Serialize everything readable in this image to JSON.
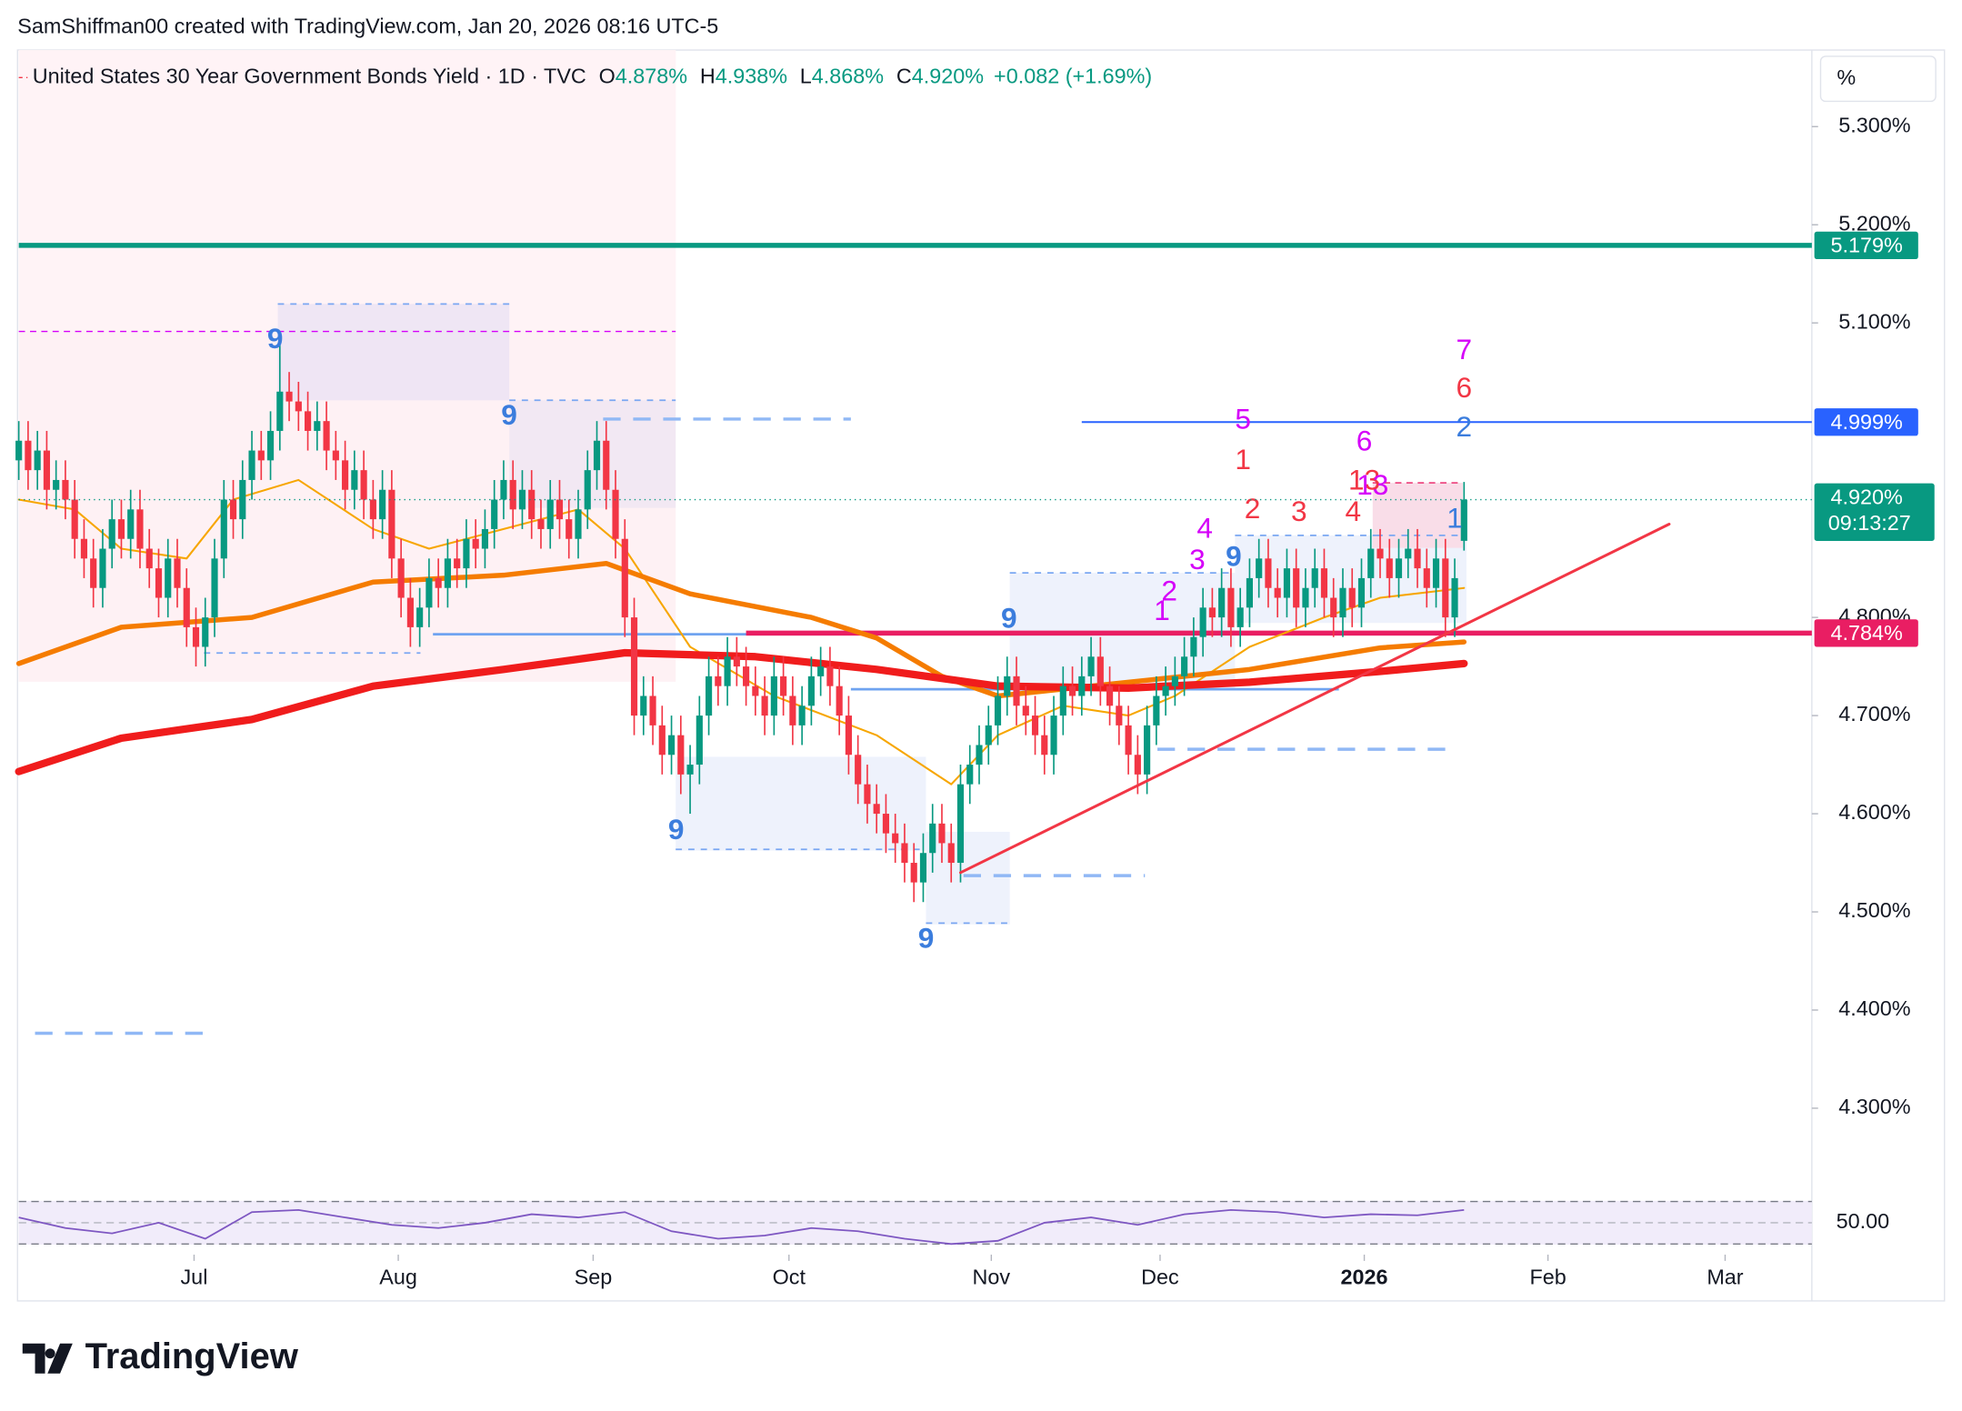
{
  "header": {
    "credit": "SamShiffman00 created with TradingView.com, Jan 20, 2026 08:16 UTC-5",
    "logo": "TradingView",
    "unit": "%"
  },
  "chart_data": {
    "type": "candlestick",
    "title": "United States 30 Year Government Bonds Yield · 1D · TVC",
    "ohlc_names": [
      "O",
      "H",
      "L",
      "C"
    ],
    "ohlc_labels": [
      "4.878%",
      "4.938%",
      "4.868%",
      "4.920%"
    ],
    "change_label": "+0.082 (+1.69%)",
    "last_label": "4.920%",
    "countdown": "09:13:27",
    "xlim": [
      0,
      192.3
    ],
    "ylim": [
      4.212,
      5.378
    ],
    "xticks": [
      {
        "value": 18.8,
        "label": "Jul"
      },
      {
        "value": 40.7,
        "label": "Aug"
      },
      {
        "value": 61.6,
        "label": "Sep"
      },
      {
        "value": 82.6,
        "label": "Oct"
      },
      {
        "value": 104.3,
        "label": "Nov"
      },
      {
        "value": 122.4,
        "label": "Dec"
      },
      {
        "value": 144.3,
        "label": "2026"
      },
      {
        "value": 164,
        "label": "Feb"
      },
      {
        "value": 183,
        "label": "Mar"
      }
    ],
    "yticks": [
      {
        "value": 4.3,
        "label": "4.300%"
      },
      {
        "value": 4.4,
        "label": "4.400%"
      },
      {
        "value": 4.5,
        "label": "4.500%"
      },
      {
        "value": 4.6,
        "label": "4.600%"
      },
      {
        "value": 4.7,
        "label": "4.700%"
      },
      {
        "value": 4.8,
        "label": "4.800%"
      },
      {
        "value": 5.1,
        "label": "5.100%"
      },
      {
        "value": 5.2,
        "label": "5.200%"
      },
      {
        "value": 5.3,
        "label": "5.300%"
      }
    ],
    "grid": false,
    "up_color": "#089981",
    "down_color": "#f23645",
    "open": [
      4.96,
      4.98,
      4.95,
      4.97,
      4.93,
      4.94,
      4.92,
      4.88,
      4.86,
      4.83,
      4.87,
      4.9,
      4.88,
      4.91,
      4.87,
      4.85,
      4.82,
      4.86,
      4.83,
      4.79,
      4.77,
      4.8,
      4.86,
      4.92,
      4.9,
      4.94,
      4.97,
      4.96,
      4.99,
      5.03,
      5.02,
      5.01,
      4.99,
      5.0,
      4.97,
      4.96,
      4.93,
      4.95,
      4.92,
      4.9,
      4.93,
      4.86,
      4.82,
      4.79,
      4.81,
      4.84,
      4.83,
      4.86,
      4.85,
      4.88,
      4.87,
      4.89,
      4.92,
      4.94,
      4.91,
      4.93,
      4.9,
      4.89,
      4.92,
      4.9,
      4.88,
      4.91,
      4.95,
      4.98,
      4.93,
      4.88,
      4.8,
      4.7,
      4.72,
      4.69,
      4.66,
      4.68,
      4.64,
      4.65,
      4.7,
      4.74,
      4.73,
      4.76,
      4.75,
      4.73,
      4.72,
      4.7,
      4.74,
      4.72,
      4.69,
      4.71,
      4.74,
      4.75,
      4.73,
      4.7,
      4.66,
      4.63,
      4.61,
      4.6,
      4.58,
      4.57,
      4.55,
      4.53,
      4.56,
      4.59,
      4.57,
      4.55,
      4.63,
      4.65,
      4.67,
      4.69,
      4.72,
      4.74,
      4.71,
      4.7,
      4.68,
      4.66,
      4.7,
      4.73,
      4.72,
      4.74,
      4.76,
      4.73,
      4.71,
      4.69,
      4.66,
      4.64,
      4.69,
      4.72,
      4.73,
      4.74,
      4.76,
      4.78,
      4.81,
      4.8,
      4.83,
      4.79,
      4.81,
      4.84,
      4.86,
      4.83,
      4.82,
      4.85,
      4.81,
      4.83,
      4.85,
      4.82,
      4.8,
      4.83,
      4.81,
      4.84,
      4.87,
      4.86,
      4.84,
      4.86,
      4.87,
      4.85,
      4.83,
      4.86,
      4.8,
      4.878
    ],
    "high": [
      5.0,
      5.0,
      4.99,
      4.99,
      4.96,
      4.96,
      4.94,
      4.9,
      4.88,
      4.89,
      4.92,
      4.92,
      4.93,
      4.93,
      4.89,
      4.87,
      4.88,
      4.88,
      4.85,
      4.81,
      4.82,
      4.88,
      4.94,
      4.94,
      4.96,
      4.99,
      4.99,
      5.01,
      5.09,
      5.05,
      5.04,
      5.03,
      5.02,
      5.02,
      4.99,
      4.98,
      4.97,
      4.97,
      4.94,
      4.95,
      4.95,
      4.88,
      4.84,
      4.83,
      4.86,
      4.86,
      4.88,
      4.88,
      4.9,
      4.9,
      4.91,
      4.94,
      4.96,
      4.96,
      4.95,
      4.95,
      4.92,
      4.94,
      4.94,
      4.92,
      4.93,
      4.97,
      5.0,
      5.0,
      4.95,
      4.9,
      4.82,
      4.74,
      4.74,
      4.71,
      4.7,
      4.7,
      4.67,
      4.72,
      4.76,
      4.76,
      4.78,
      4.78,
      4.77,
      4.75,
      4.74,
      4.76,
      4.76,
      4.74,
      4.73,
      4.76,
      4.77,
      4.77,
      4.75,
      4.72,
      4.68,
      4.65,
      4.63,
      4.62,
      4.6,
      4.59,
      4.57,
      4.58,
      4.61,
      4.61,
      4.59,
      4.65,
      4.67,
      4.69,
      4.71,
      4.74,
      4.76,
      4.76,
      4.73,
      4.72,
      4.7,
      4.72,
      4.75,
      4.75,
      4.76,
      4.78,
      4.78,
      4.75,
      4.73,
      4.71,
      4.68,
      4.71,
      4.74,
      4.75,
      4.76,
      4.78,
      4.8,
      4.83,
      4.83,
      4.85,
      4.85,
      4.83,
      4.86,
      4.88,
      4.88,
      4.85,
      4.87,
      4.87,
      4.85,
      4.87,
      4.87,
      4.84,
      4.85,
      4.85,
      4.86,
      4.89,
      4.89,
      4.88,
      4.88,
      4.89,
      4.89,
      4.87,
      4.88,
      4.88,
      4.86,
      4.938
    ],
    "low": [
      4.94,
      4.93,
      4.93,
      4.91,
      4.91,
      4.9,
      4.86,
      4.84,
      4.81,
      4.81,
      4.85,
      4.86,
      4.86,
      4.85,
      4.83,
      4.8,
      4.8,
      4.81,
      4.77,
      4.75,
      4.75,
      4.78,
      4.84,
      4.88,
      4.88,
      4.92,
      4.94,
      4.94,
      4.97,
      5.0,
      4.99,
      4.97,
      4.97,
      4.95,
      4.94,
      4.91,
      4.91,
      4.9,
      4.88,
      4.88,
      4.84,
      4.8,
      4.77,
      4.77,
      4.79,
      4.81,
      4.81,
      4.83,
      4.83,
      4.85,
      4.85,
      4.87,
      4.9,
      4.89,
      4.89,
      4.88,
      4.87,
      4.87,
      4.88,
      4.86,
      4.86,
      4.89,
      4.93,
      4.91,
      4.86,
      4.78,
      4.68,
      4.68,
      4.67,
      4.64,
      4.64,
      4.62,
      4.6,
      4.63,
      4.68,
      4.71,
      4.71,
      4.73,
      4.71,
      4.7,
      4.68,
      4.68,
      4.7,
      4.67,
      4.67,
      4.69,
      4.72,
      4.71,
      4.68,
      4.64,
      4.61,
      4.59,
      4.58,
      4.56,
      4.55,
      4.53,
      4.51,
      4.51,
      4.54,
      4.55,
      4.53,
      4.53,
      4.61,
      4.63,
      4.65,
      4.67,
      4.7,
      4.69,
      4.68,
      4.66,
      4.64,
      4.64,
      4.68,
      4.7,
      4.7,
      4.72,
      4.71,
      4.69,
      4.67,
      4.64,
      4.62,
      4.62,
      4.67,
      4.7,
      4.71,
      4.72,
      4.74,
      4.76,
      4.78,
      4.78,
      4.77,
      4.77,
      4.79,
      4.82,
      4.81,
      4.8,
      4.8,
      4.79,
      4.79,
      4.81,
      4.8,
      4.78,
      4.78,
      4.79,
      4.79,
      4.82,
      4.84,
      4.82,
      4.82,
      4.84,
      4.83,
      4.81,
      4.81,
      4.78,
      4.78,
      4.868
    ],
    "close": [
      4.98,
      4.95,
      4.97,
      4.93,
      4.94,
      4.92,
      4.88,
      4.86,
      4.83,
      4.87,
      4.9,
      4.88,
      4.91,
      4.87,
      4.85,
      4.82,
      4.86,
      4.83,
      4.79,
      4.77,
      4.8,
      4.86,
      4.92,
      4.9,
      4.94,
      4.97,
      4.96,
      4.99,
      5.03,
      5.02,
      5.01,
      4.99,
      5.0,
      4.97,
      4.96,
      4.93,
      4.95,
      4.92,
      4.9,
      4.93,
      4.86,
      4.82,
      4.79,
      4.81,
      4.84,
      4.83,
      4.86,
      4.85,
      4.88,
      4.87,
      4.89,
      4.92,
      4.94,
      4.91,
      4.93,
      4.9,
      4.89,
      4.92,
      4.9,
      4.88,
      4.91,
      4.95,
      4.98,
      4.93,
      4.88,
      4.8,
      4.7,
      4.72,
      4.69,
      4.66,
      4.68,
      4.64,
      4.65,
      4.7,
      4.74,
      4.73,
      4.76,
      4.75,
      4.73,
      4.72,
      4.7,
      4.74,
      4.72,
      4.69,
      4.71,
      4.74,
      4.75,
      4.73,
      4.7,
      4.66,
      4.63,
      4.61,
      4.6,
      4.58,
      4.57,
      4.55,
      4.53,
      4.56,
      4.59,
      4.57,
      4.55,
      4.63,
      4.65,
      4.67,
      4.69,
      4.72,
      4.74,
      4.71,
      4.7,
      4.68,
      4.66,
      4.7,
      4.73,
      4.72,
      4.74,
      4.76,
      4.73,
      4.71,
      4.69,
      4.66,
      4.64,
      4.69,
      4.72,
      4.73,
      4.74,
      4.76,
      4.78,
      4.81,
      4.8,
      4.83,
      4.79,
      4.81,
      4.84,
      4.86,
      4.83,
      4.82,
      4.85,
      4.81,
      4.83,
      4.85,
      4.82,
      4.8,
      4.83,
      4.81,
      4.84,
      4.87,
      4.86,
      4.84,
      4.86,
      4.87,
      4.85,
      4.83,
      4.86,
      4.8,
      4.84,
      4.92
    ],
    "lines": [
      {
        "color": "#f7a600",
        "width": 1.5,
        "x": [
          0,
          6,
          11,
          18,
          23,
          30,
          38,
          44,
          52,
          60,
          65,
          72,
          81,
          92,
          100,
          105,
          112,
          119,
          124,
          132,
          140,
          146,
          155
        ],
        "values": [
          4.92,
          4.91,
          4.87,
          4.86,
          4.92,
          4.94,
          4.89,
          4.87,
          4.89,
          4.91,
          4.87,
          4.77,
          4.72,
          4.68,
          4.63,
          4.68,
          4.71,
          4.7,
          4.72,
          4.77,
          4.8,
          4.82,
          4.83
        ]
      },
      {
        "color": "#f57c00",
        "width": 4,
        "x": [
          0,
          11,
          25,
          38,
          52,
          63,
          72,
          85,
          92,
          99,
          105,
          119,
          132,
          146,
          155
        ],
        "values": [
          4.753,
          4.79,
          4.8,
          4.836,
          4.843,
          4.855,
          4.824,
          4.8,
          4.779,
          4.74,
          4.72,
          4.734,
          4.747,
          4.769,
          4.775
        ]
      },
      {
        "color": "#f01c1c",
        "width": 6,
        "x": [
          0,
          11,
          25,
          38,
          52,
          65,
          79,
          92,
          105,
          119,
          132,
          146,
          155
        ],
        "values": [
          4.643,
          4.677,
          4.696,
          4.73,
          4.747,
          4.764,
          4.76,
          4.747,
          4.73,
          4.728,
          4.734,
          4.745,
          4.753
        ]
      }
    ],
    "trendline": {
      "color": "#f23645",
      "x": [
        101,
        177
      ],
      "values": [
        4.54,
        4.895
      ]
    },
    "levels": [
      {
        "value": 5.179,
        "label": "5.179%",
        "color": "#089981",
        "x": 0,
        "width": 4
      },
      {
        "value": 4.999,
        "label": "4.999%",
        "color": "#2962ff",
        "x": 114,
        "width": 1.5
      },
      {
        "value": 4.784,
        "label": "4.784%",
        "color": "#e91e63",
        "x": 78,
        "width": 4
      }
    ],
    "annotations": [
      {
        "text": "9",
        "x": 27.5,
        "y": 5.082,
        "color": "#3b7ddd"
      },
      {
        "text": "9",
        "x": 52.6,
        "y": 5.004,
        "color": "#3b7ddd"
      },
      {
        "text": "9",
        "x": 70.5,
        "y": 4.582,
        "color": "#3b7ddd"
      },
      {
        "text": "9",
        "x": 97.3,
        "y": 4.471,
        "color": "#3b7ddd"
      },
      {
        "text": "9",
        "x": 106.2,
        "y": 4.797,
        "color": "#3b7ddd"
      },
      {
        "text": "9",
        "x": 130.3,
        "y": 4.86,
        "color": "#3b7ddd"
      },
      {
        "text": "1",
        "x": 122.6,
        "y": 4.805,
        "color": "#d500f9"
      },
      {
        "text": "2",
        "x": 123.4,
        "y": 4.825,
        "color": "#d500f9"
      },
      {
        "text": "3",
        "x": 126.4,
        "y": 4.857,
        "color": "#d500f9"
      },
      {
        "text": "4",
        "x": 127.2,
        "y": 4.889,
        "color": "#d500f9"
      },
      {
        "text": "5",
        "x": 131.3,
        "y": 5.0,
        "color": "#d500f9"
      },
      {
        "text": "1",
        "x": 131.3,
        "y": 4.959,
        "color": "#f23645"
      },
      {
        "text": "2",
        "x": 132.3,
        "y": 4.909,
        "color": "#f23645"
      },
      {
        "text": "3",
        "x": 137.3,
        "y": 4.906,
        "color": "#f23645"
      },
      {
        "text": "4",
        "x": 143.1,
        "y": 4.906,
        "color": "#f23645"
      },
      {
        "text": "6",
        "x": 144.3,
        "y": 4.978,
        "color": "#d500f9"
      },
      {
        "text": "13",
        "x": 144.3,
        "y": 4.938,
        "color": "#f23645"
      },
      {
        "text": "13",
        "x": 145.2,
        "y": 4.933,
        "color": "#d500f9"
      },
      {
        "text": "7",
        "x": 155,
        "y": 5.071,
        "color": "#d500f9"
      },
      {
        "text": "6",
        "x": 155,
        "y": 5.032,
        "color": "#f23645"
      },
      {
        "text": "2",
        "x": 155,
        "y": 4.992,
        "color": "#3b7ddd"
      },
      {
        "text": "1",
        "x": 154,
        "y": 4.899,
        "color": "#3b7ddd"
      }
    ],
    "rsi": {
      "color": "#7e57c2",
      "ylim": [
        20,
        80
      ],
      "yticks": [
        {
          "value": 50,
          "label": "50.00"
        }
      ],
      "band": [
        30,
        70
      ],
      "x": [
        0,
        5,
        10,
        15,
        20,
        25,
        30,
        35,
        40,
        45,
        50,
        55,
        60,
        65,
        70,
        75,
        80,
        85,
        90,
        95,
        100,
        105,
        110,
        115,
        120,
        125,
        130,
        135,
        140,
        145,
        150,
        155
      ],
      "values": [
        55,
        45,
        40,
        50,
        35,
        60,
        62,
        55,
        48,
        45,
        50,
        58,
        55,
        60,
        42,
        35,
        38,
        45,
        42,
        35,
        30,
        33,
        50,
        55,
        48,
        58,
        62,
        60,
        55,
        58,
        57,
        62
      ]
    }
  }
}
